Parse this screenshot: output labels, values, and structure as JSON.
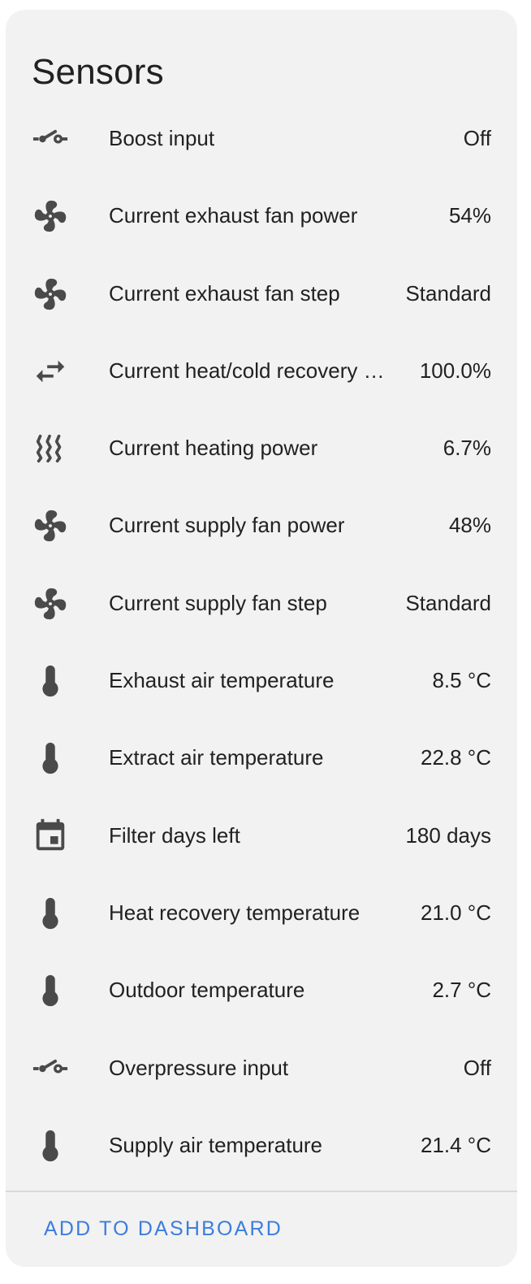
{
  "card": {
    "title": "Sensors",
    "action_label": "ADD TO DASHBOARD"
  },
  "colors": {
    "card_background": "#f2f2f2",
    "icon": "#4a4a4a",
    "text": "#212121",
    "accent": "#3b7ddd"
  },
  "sensors": [
    {
      "icon": "electric-switch-icon",
      "label": "Boost input",
      "value": "Off"
    },
    {
      "icon": "fan-icon",
      "label": "Current exhaust fan power",
      "value": "54%"
    },
    {
      "icon": "fan-icon",
      "label": "Current exhaust fan step",
      "value": "Standard"
    },
    {
      "icon": "swap-horizontal-icon",
      "label": "Current heat/cold recovery …",
      "value": "100.0%"
    },
    {
      "icon": "heat-wave-icon",
      "label": "Current heating power",
      "value": "6.7%"
    },
    {
      "icon": "fan-icon",
      "label": "Current supply fan power",
      "value": "48%"
    },
    {
      "icon": "fan-icon",
      "label": "Current supply fan step",
      "value": "Standard"
    },
    {
      "icon": "thermometer-icon",
      "label": "Exhaust air temperature",
      "value": "8.5 °C"
    },
    {
      "icon": "thermometer-icon",
      "label": "Extract air temperature",
      "value": "22.8 °C"
    },
    {
      "icon": "calendar-icon",
      "label": "Filter days left",
      "value": "180 days"
    },
    {
      "icon": "thermometer-icon",
      "label": "Heat recovery temperature",
      "value": "21.0 °C"
    },
    {
      "icon": "thermometer-icon",
      "label": "Outdoor temperature",
      "value": "2.7 °C"
    },
    {
      "icon": "electric-switch-icon",
      "label": "Overpressure input",
      "value": "Off"
    },
    {
      "icon": "thermometer-icon",
      "label": "Supply air temperature",
      "value": "21.4 °C"
    }
  ]
}
